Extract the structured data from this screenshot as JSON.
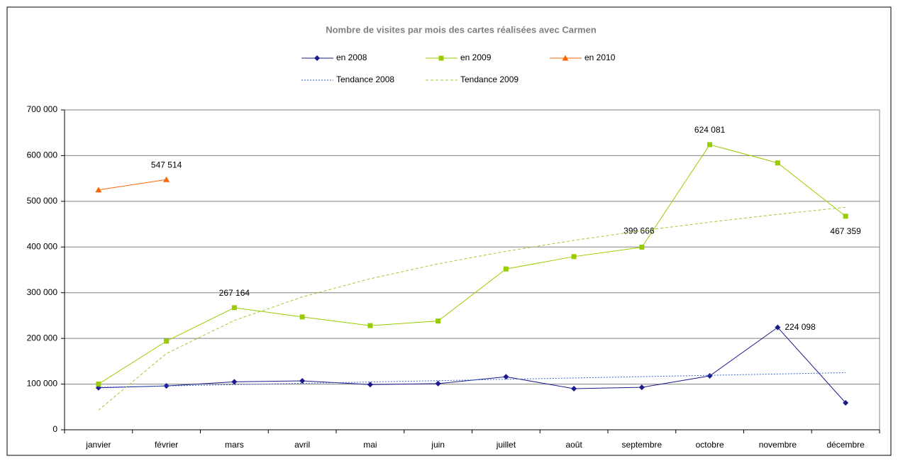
{
  "chart_data": {
    "type": "line",
    "title": "Nombre de visites par mois des cartes réalisées avec Carmen",
    "categories": [
      "janvier",
      "février",
      "mars",
      "avril",
      "mai",
      "juin",
      "juillet",
      "août",
      "septembre",
      "octobre",
      "novembre",
      "décembre"
    ],
    "series": [
      {
        "name": "en 2008",
        "color": "#1a1a8c",
        "marker": "diamond",
        "label_color": "#1a1a8c",
        "values": [
          92000,
          96000,
          105000,
          107000,
          99000,
          101000,
          116000,
          90000,
          93000,
          118000,
          224098,
          59000
        ],
        "value_labels": [
          null,
          null,
          null,
          null,
          null,
          null,
          null,
          null,
          null,
          null,
          "224 098",
          null
        ]
      },
      {
        "name": "en 2009",
        "color": "#99cc00",
        "marker": "square",
        "label_color": "#339900",
        "values": [
          100000,
          194000,
          267164,
          247000,
          228000,
          238000,
          352000,
          379000,
          399666,
          624081,
          584000,
          467359
        ],
        "value_labels": [
          null,
          null,
          "267 164",
          null,
          null,
          null,
          null,
          null,
          "399 666",
          "624 081",
          null,
          "467 359"
        ]
      },
      {
        "name": "en 2010",
        "color": "#ff6600",
        "marker": "triangle",
        "label_color": "#993300",
        "values": [
          525000,
          547514,
          null,
          null,
          null,
          null,
          null,
          null,
          null,
          null,
          null,
          null
        ],
        "value_labels": [
          null,
          "547 514",
          null,
          null,
          null,
          null,
          null,
          null,
          null,
          null,
          null,
          null
        ]
      },
      {
        "name": "Tendance 2008",
        "color": "#3366cc",
        "dash": "2,2",
        "values": [
          93000,
          95900,
          98800,
          101700,
          104600,
          107500,
          110500,
          113400,
          116300,
          119200,
          122100,
          125000
        ]
      },
      {
        "name": "Tendance 2009",
        "color": "#99cc33",
        "dash": "4,3",
        "values": [
          43000,
          166900,
          239300,
          290700,
          330600,
          363200,
          390700,
          414600,
          435600,
          454500,
          471500,
          487000
        ]
      }
    ],
    "ylim": [
      0,
      700000
    ],
    "yticks": [
      0,
      {
        "value": 100000,
        "label": "100 000"
      },
      {
        "value": 200000,
        "label": "200 000"
      },
      {
        "value": 300000,
        "label": "300 000"
      },
      {
        "value": 400000,
        "label": "400 000"
      },
      {
        "value": 500000,
        "label": "500 000"
      },
      {
        "value": 600000,
        "label": "600 000"
      },
      {
        "value": 700000,
        "label": "700 000"
      }
    ],
    "grid": true
  }
}
